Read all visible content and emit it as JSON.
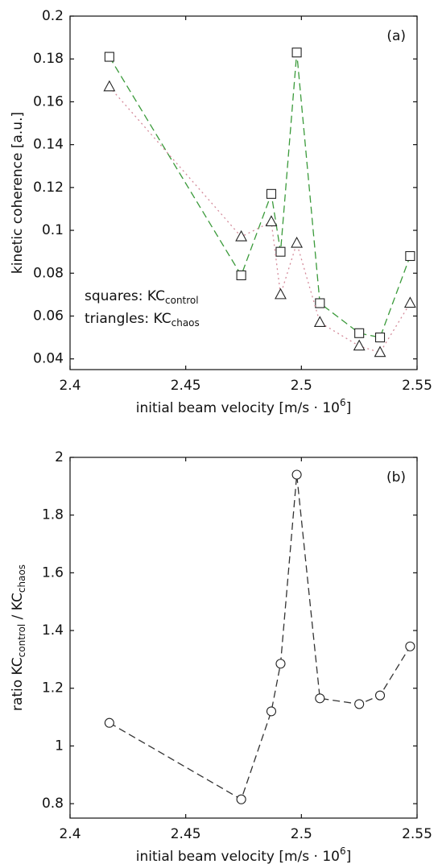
{
  "chart_data": [
    {
      "type": "line",
      "label": "(a)",
      "xlabel": [
        "initial beam velocity [m/s · 10",
        {
          "sup": "6"
        },
        "]"
      ],
      "ylabel": [
        "kinetic coherence [a.u.]"
      ],
      "x": [
        2.417,
        2.474,
        2.487,
        2.491,
        2.498,
        2.508,
        2.525,
        2.534,
        2.547
      ],
      "series": [
        {
          "marker": "square",
          "color": "#3a9a3a",
          "dash": "9 5",
          "values": [
            0.181,
            0.079,
            0.117,
            0.09,
            0.183,
            0.066,
            0.052,
            0.05,
            0.088
          ]
        },
        {
          "marker": "triangle",
          "color": "#d48a9a",
          "dash": "2 4",
          "values": [
            0.167,
            0.097,
            0.104,
            0.07,
            0.094,
            0.057,
            0.046,
            0.043,
            0.066
          ]
        }
      ],
      "annotations": [
        [
          "squares: KC",
          {
            "sub": "control"
          }
        ],
        [
          "triangles: KC",
          {
            "sub": "chaos"
          }
        ]
      ],
      "xlim": [
        2.4,
        2.55
      ],
      "xticks": [
        2.4,
        2.45,
        2.5,
        2.55
      ],
      "ylim": [
        0.035,
        0.2
      ],
      "yticks": [
        0.04,
        0.06,
        0.08,
        0.1,
        0.12,
        0.14,
        0.16,
        0.18,
        0.2
      ]
    },
    {
      "type": "line",
      "label": "(b)",
      "xlabel": [
        "initial beam velocity [m/s · 10",
        {
          "sup": "6"
        },
        "]"
      ],
      "ylabel": [
        "ratio KC",
        {
          "sub": "control"
        },
        " / KC",
        {
          "sub": "chaos"
        }
      ],
      "x": [
        2.417,
        2.474,
        2.487,
        2.491,
        2.498,
        2.508,
        2.525,
        2.534,
        2.547
      ],
      "series": [
        {
          "marker": "circle",
          "color": "#333333",
          "dash": "9 5",
          "values": [
            1.08,
            0.815,
            1.12,
            1.285,
            1.94,
            1.165,
            1.145,
            1.175,
            1.345
          ]
        }
      ],
      "annotations": [],
      "xlim": [
        2.4,
        2.55
      ],
      "xticks": [
        2.4,
        2.45,
        2.5,
        2.55
      ],
      "ylim": [
        0.75,
        2
      ],
      "yticks": [
        0.8,
        1,
        1.2,
        1.4,
        1.6,
        1.8,
        2
      ]
    }
  ]
}
